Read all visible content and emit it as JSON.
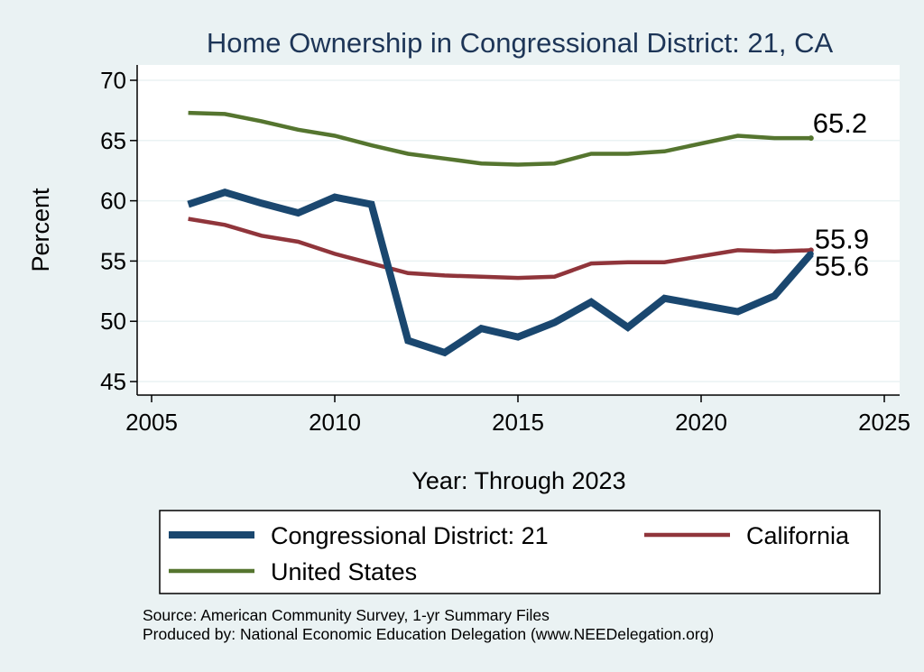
{
  "colors": {
    "background": "#eaf2f3",
    "plot_background": "#ffffff",
    "grid": "#eaf2f3",
    "title": "#1d3557"
  },
  "chart_data": {
    "type": "line",
    "title": "Home Ownership in Congressional District:  21, CA",
    "xlabel": "Year: Through 2023",
    "ylabel": "Percent",
    "xlim": [
      2005,
      2025
    ],
    "ylim": [
      45,
      70
    ],
    "xticks": [
      2005,
      2010,
      2015,
      2020,
      2025
    ],
    "yticks": [
      45,
      50,
      55,
      60,
      65,
      70
    ],
    "grid": true,
    "legend_position": "bottom",
    "series": [
      {
        "name": "Congressional District:  21",
        "color": "#1a476f",
        "line_weight": "thick",
        "x": [
          2006,
          2007,
          2008,
          2009,
          2010,
          2011,
          2012,
          2013,
          2014,
          2015,
          2016,
          2017,
          2018,
          2019,
          2021,
          2022,
          2023
        ],
        "y": [
          59.7,
          60.7,
          59.8,
          59.0,
          60.3,
          59.7,
          48.4,
          47.4,
          49.4,
          48.7,
          49.9,
          51.6,
          49.5,
          51.9,
          50.8,
          52.1,
          55.6
        ],
        "end_label": "55.6"
      },
      {
        "name": "California",
        "color": "#90353b",
        "line_weight": "medium",
        "x": [
          2006,
          2007,
          2008,
          2009,
          2010,
          2011,
          2012,
          2013,
          2014,
          2015,
          2016,
          2017,
          2018,
          2019,
          2021,
          2022,
          2023
        ],
        "y": [
          58.5,
          58.0,
          57.1,
          56.6,
          55.6,
          54.8,
          54.0,
          53.8,
          53.7,
          53.6,
          53.7,
          54.8,
          54.9,
          54.9,
          55.9,
          55.8,
          55.9
        ],
        "end_label": "55.9"
      },
      {
        "name": "United States",
        "color": "#55752f",
        "line_weight": "medium",
        "x": [
          2006,
          2007,
          2008,
          2009,
          2010,
          2011,
          2012,
          2013,
          2014,
          2015,
          2016,
          2017,
          2018,
          2019,
          2021,
          2022,
          2023
        ],
        "y": [
          67.3,
          67.2,
          66.6,
          65.9,
          65.4,
          64.6,
          63.9,
          63.5,
          63.1,
          63.0,
          63.1,
          63.9,
          63.9,
          64.1,
          65.4,
          65.2,
          65.2
        ],
        "end_label": "65.2"
      }
    ]
  },
  "notes": {
    "source": "Source: American Community Survey, 1-yr Summary Files",
    "produced_by": "Produced by: National Economic Education Delegation (www.NEEDelegation.org)"
  }
}
